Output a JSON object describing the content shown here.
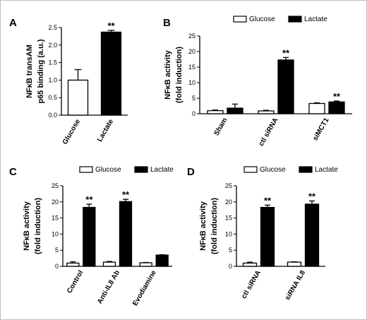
{
  "figure": {
    "panels": [
      {
        "id": "A",
        "label": "A",
        "ylabel_lines": [
          "NFκB transAM",
          "p65 binding (a.u.)"
        ]
      },
      {
        "id": "B",
        "label": "B",
        "ylabel_lines": [
          "NFκB activity",
          "(fold induction)"
        ]
      },
      {
        "id": "C",
        "label": "C",
        "ylabel_lines": [
          "NFκB activity",
          "(fold induction)"
        ]
      },
      {
        "id": "D",
        "label": "D",
        "ylabel_lines": [
          "NFκB activity",
          "(fold induction)"
        ]
      }
    ]
  },
  "chart_data": [
    {
      "panel": "A",
      "type": "bar",
      "categories": [
        "Glucose",
        "Lactate"
      ],
      "values": [
        1.0,
        2.37
      ],
      "errors": [
        0.3,
        0.05
      ],
      "bar_colors": [
        "#ffffff",
        "#000000"
      ],
      "annotations": [
        "",
        "**"
      ],
      "ylim": [
        0,
        2.5
      ],
      "yticks": [
        0.0,
        0.5,
        1.0,
        1.5,
        2.0,
        2.5
      ],
      "ytick_labels": [
        "0.0",
        "0.5",
        "1.0",
        "1.5",
        "2.0",
        "2.5"
      ]
    },
    {
      "panel": "B",
      "type": "bar",
      "categories": [
        "Sham",
        "ctl siRNA",
        "siMCT1"
      ],
      "series": [
        {
          "name": "Glucose",
          "color": "#ffffff",
          "values": [
            1.0,
            0.9,
            3.3
          ],
          "errors": [
            0.2,
            0.2,
            0.2
          ],
          "annotations": [
            "",
            "",
            ""
          ]
        },
        {
          "name": "Lactate",
          "color": "#000000",
          "values": [
            1.8,
            17.3,
            3.8
          ],
          "errors": [
            1.3,
            0.8,
            0.3
          ],
          "annotations": [
            "",
            "**",
            "**"
          ]
        }
      ],
      "legend_position": "top",
      "ylim": [
        0,
        25
      ],
      "yticks": [
        0,
        5,
        10,
        15,
        20,
        25
      ],
      "ytick_labels": [
        "0",
        "5",
        "10",
        "15",
        "20",
        "25"
      ]
    },
    {
      "panel": "C",
      "type": "bar",
      "categories": [
        "Control",
        "Anti-IL8 Ab",
        "Evodiamine"
      ],
      "series": [
        {
          "name": "Glucose",
          "color": "#ffffff",
          "values": [
            1.0,
            1.3,
            1.1
          ],
          "errors": [
            0.4,
            0.2,
            0.1
          ],
          "annotations": [
            "",
            "",
            ""
          ]
        },
        {
          "name": "Lactate",
          "color": "#000000",
          "values": [
            18.3,
            20.1,
            3.5
          ],
          "errors": [
            1.0,
            0.7,
            0.1
          ],
          "annotations": [
            "**",
            "**",
            ""
          ]
        }
      ],
      "legend_position": "top",
      "ylim": [
        0,
        25
      ],
      "yticks": [
        0,
        5,
        10,
        15,
        20,
        25
      ],
      "ytick_labels": [
        "0",
        "5",
        "10",
        "15",
        "20",
        "25"
      ]
    },
    {
      "panel": "D",
      "type": "bar",
      "categories": [
        "ctl siRNA",
        "siRNA IL8"
      ],
      "series": [
        {
          "name": "Glucose",
          "color": "#ffffff",
          "values": [
            1.0,
            1.3
          ],
          "errors": [
            0.3,
            0.1
          ],
          "annotations": [
            "",
            ""
          ]
        },
        {
          "name": "Lactate",
          "color": "#000000",
          "values": [
            18.3,
            19.3
          ],
          "errors": [
            0.7,
            1.0
          ],
          "annotations": [
            "**",
            "**"
          ]
        }
      ],
      "legend_position": "top",
      "ylim": [
        0,
        25
      ],
      "yticks": [
        0,
        5,
        10,
        15,
        20,
        25
      ],
      "ytick_labels": [
        "0",
        "5",
        "10",
        "15",
        "20",
        "25"
      ]
    }
  ]
}
